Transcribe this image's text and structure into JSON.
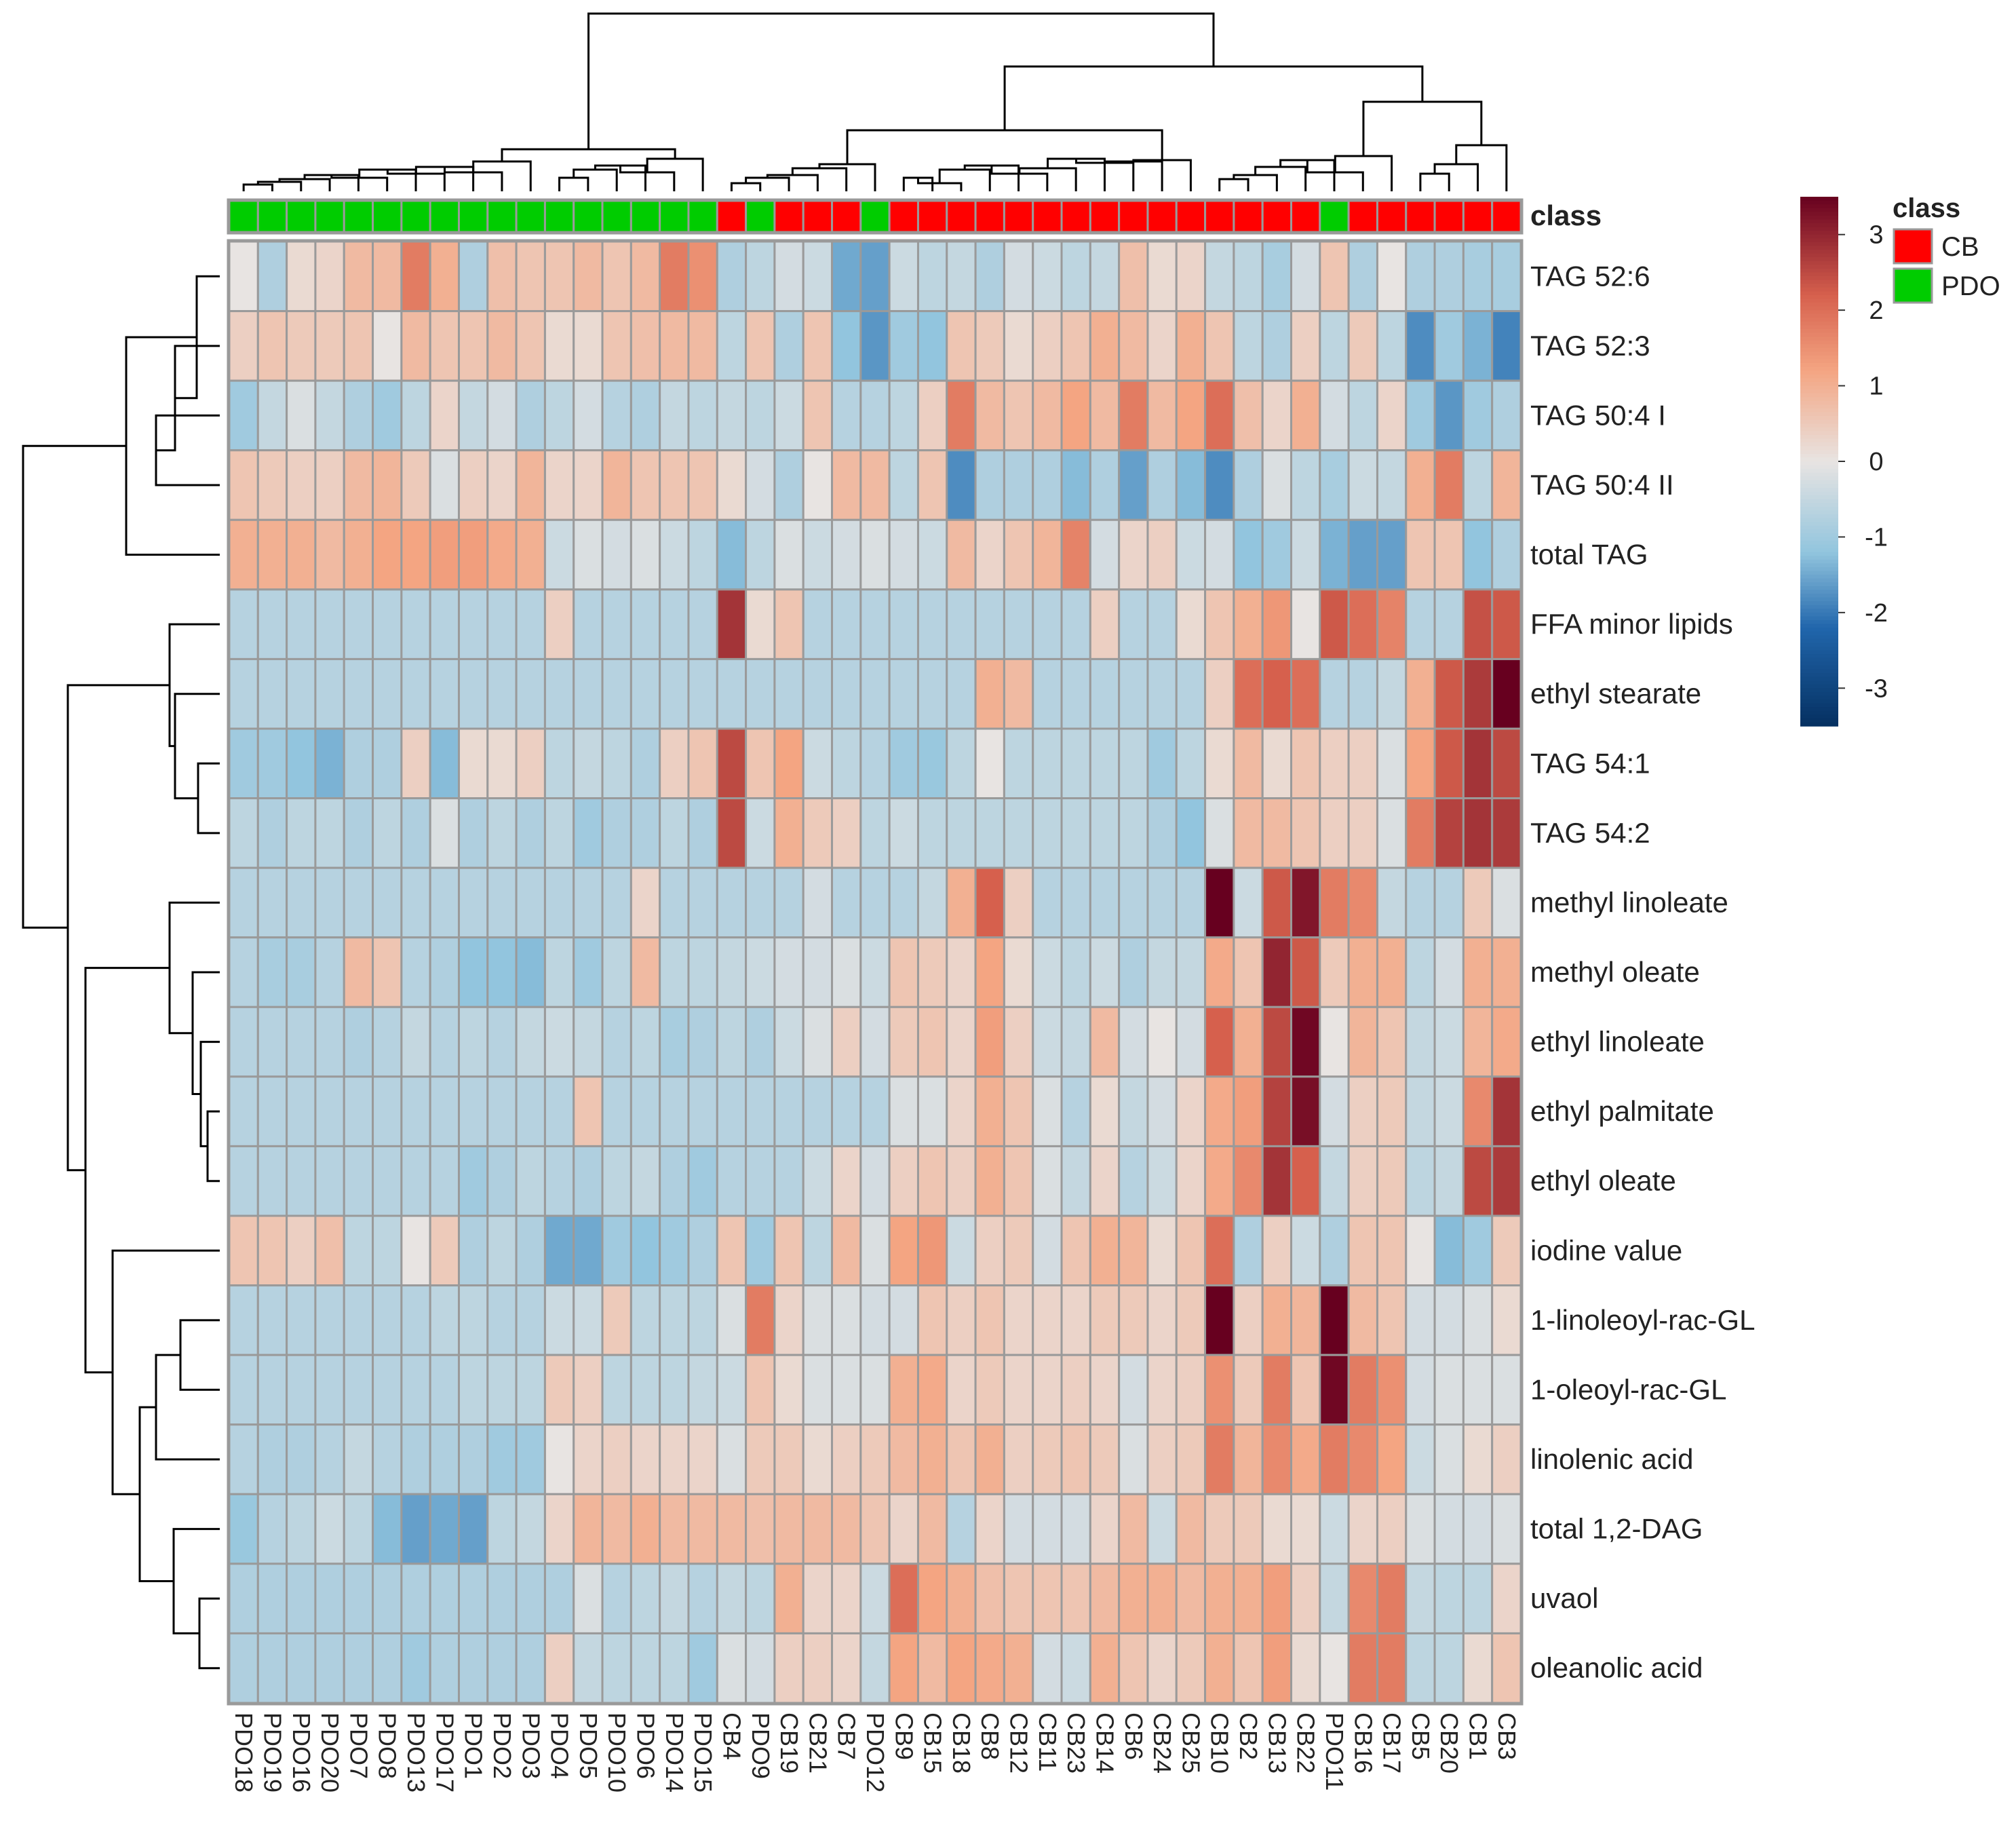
{
  "chart_data": {
    "type": "heatmap",
    "title": "",
    "class_header": "class",
    "legend_title": "class",
    "classes": [
      {
        "name": "CB",
        "color": "#ff0000"
      },
      {
        "name": "PDO",
        "color": "#00cc00"
      }
    ],
    "color_scale": {
      "min": -3.5,
      "max": 3.5,
      "ticks": [
        3,
        2,
        1,
        0,
        -1,
        -2,
        -3
      ],
      "tick_labels": [
        "3",
        "2",
        "1",
        "0",
        "-1",
        "-2",
        "-3"
      ],
      "stops": [
        {
          "v": -3.5,
          "color": "#053061"
        },
        {
          "v": -2.2,
          "color": "#2166ac"
        },
        {
          "v": -1.2,
          "color": "#92c5de"
        },
        {
          "v": 0,
          "color": "#e8e4e2"
        },
        {
          "v": 1.2,
          "color": "#f4a582"
        },
        {
          "v": 2.2,
          "color": "#d6604d"
        },
        {
          "v": 3.5,
          "color": "#67001f"
        }
      ]
    },
    "columns": [
      "PDO18",
      "PDO19",
      "PDO16",
      "PDO20",
      "PDO7",
      "PDO8",
      "PDO13",
      "PDO17",
      "PDO1",
      "PDO2",
      "PDO3",
      "PDO4",
      "PDO5",
      "PDO10",
      "PDO6",
      "PDO14",
      "PDO15",
      "CB4",
      "PDO9",
      "CB19",
      "CB21",
      "CB7",
      "PDO12",
      "CB9",
      "CB15",
      "CB18",
      "CB8",
      "CB12",
      "CB11",
      "CB23",
      "CB14",
      "CB6",
      "CB24",
      "CB25",
      "CB10",
      "CB2",
      "CB13",
      "CB22",
      "PDO11",
      "CB16",
      "CB17",
      "CB5",
      "CB20",
      "CB1",
      "CB3"
    ],
    "column_classes": [
      "PDO",
      "PDO",
      "PDO",
      "PDO",
      "PDO",
      "PDO",
      "PDO",
      "PDO",
      "PDO",
      "PDO",
      "PDO",
      "PDO",
      "PDO",
      "PDO",
      "PDO",
      "PDO",
      "PDO",
      "CB",
      "PDO",
      "CB",
      "CB",
      "CB",
      "PDO",
      "CB",
      "CB",
      "CB",
      "CB",
      "CB",
      "CB",
      "CB",
      "CB",
      "CB",
      "CB",
      "CB",
      "CB",
      "CB",
      "CB",
      "CB",
      "PDO",
      "CB",
      "CB",
      "CB",
      "CB",
      "CB",
      "CB"
    ],
    "rows": [
      "TAG 52:6",
      "TAG 52:3",
      "TAG 50:4 I",
      "TAG 50:4 II",
      "total TAG",
      "FFA  minor lipids",
      "ethyl stearate",
      "TAG 54:1",
      "TAG 54:2",
      "methyl linoleate",
      "methyl oleate",
      "ethyl linoleate",
      "ethyl palmitate",
      "ethyl oleate",
      "iodine value",
      "1-linoleoyl-rac-GL",
      "1-oleoyl-rac-GL",
      "linolenic acid",
      "total 1,2-DAG",
      "uvaol",
      "oleanolic acid"
    ],
    "values": [
      [
        0,
        -0.8,
        0.2,
        0.3,
        0.8,
        0.8,
        1.8,
        1,
        -0.8,
        0.7,
        0.6,
        0.6,
        0.8,
        0.6,
        0.8,
        1.8,
        1.5,
        -0.8,
        -0.6,
        -0.3,
        -0.4,
        -1.5,
        -1.6,
        -0.4,
        -0.6,
        -0.5,
        -0.8,
        -0.3,
        -0.4,
        -0.6,
        -0.5,
        0.7,
        0.2,
        0.3,
        -0.5,
        -0.6,
        -0.9,
        -0.3,
        0.6,
        -0.8,
        0,
        -0.8,
        -0.8,
        -0.9,
        -0.9
      ],
      [
        0.4,
        0.6,
        0.5,
        0.5,
        0.6,
        0,
        0.8,
        0.6,
        0.6,
        0.8,
        0.6,
        0.2,
        0.2,
        0.6,
        0.7,
        0.8,
        0.8,
        -0.6,
        0.6,
        -0.8,
        0.6,
        -1.2,
        -1.7,
        -1,
        -1.2,
        0.6,
        0.5,
        0.2,
        0.4,
        0.6,
        1,
        0.8,
        0.3,
        1,
        0.6,
        -0.6,
        -0.8,
        0.4,
        -0.6,
        0.5,
        -0.6,
        -1.8,
        -1,
        -1.4,
        -1.9
      ],
      [
        -1,
        -0.5,
        -0.2,
        -0.5,
        -0.8,
        -1,
        -0.6,
        0.3,
        -0.5,
        -0.3,
        -0.8,
        -0.6,
        -0.3,
        -0.7,
        -0.8,
        -0.5,
        -0.6,
        -0.5,
        -0.6,
        -0.4,
        0.6,
        -0.7,
        -0.7,
        -0.6,
        0.4,
        1.8,
        0.8,
        0.6,
        0.8,
        1.2,
        0.8,
        1.8,
        0.8,
        1.2,
        2,
        0.7,
        0.3,
        1,
        -0.3,
        -0.6,
        0.3,
        -1,
        -1.7,
        -1,
        -0.8
      ],
      [
        0.6,
        0.5,
        0.4,
        0.4,
        0.8,
        0.9,
        0.5,
        -0.2,
        0.4,
        0.3,
        0.9,
        0.3,
        0.3,
        0.9,
        0.6,
        0.6,
        0.6,
        0.2,
        -0.3,
        -0.8,
        0,
        0.8,
        0.8,
        -0.6,
        0.6,
        -1.8,
        -0.8,
        -0.8,
        -0.8,
        -1.3,
        -0.8,
        -1.6,
        -0.8,
        -1.3,
        -1.8,
        -0.8,
        -0.2,
        -0.6,
        -0.9,
        -0.4,
        -0.5,
        1,
        1.8,
        -0.6,
        0.9
      ],
      [
        1,
        1,
        1,
        0.8,
        1,
        1.2,
        1.2,
        1.3,
        1.3,
        1.1,
        1,
        -0.4,
        -0.2,
        -0.3,
        -0.2,
        -0.4,
        -0.6,
        -1.3,
        -0.6,
        -0.2,
        -0.4,
        -0.3,
        -0.2,
        -0.3,
        -0.4,
        0.8,
        0.3,
        0.6,
        0.9,
        1.7,
        -0.3,
        0.3,
        0.4,
        -0.4,
        -0.3,
        -1.2,
        -1,
        -0.4,
        -1.4,
        -1.6,
        -1.6,
        0.6,
        0.6,
        -1.2,
        -0.8
      ],
      [
        -0.7,
        -0.7,
        -0.7,
        -0.7,
        -0.7,
        -0.7,
        -0.7,
        -0.7,
        -0.7,
        -0.7,
        -0.7,
        0.4,
        -0.7,
        -0.7,
        -0.7,
        -0.7,
        -0.7,
        2.8,
        0.2,
        0.6,
        -0.7,
        -0.7,
        -0.7,
        -0.7,
        -0.7,
        -0.7,
        -0.7,
        -0.7,
        -0.7,
        -0.7,
        0.4,
        -0.7,
        -0.7,
        0.2,
        0.6,
        1,
        1.4,
        0,
        2.3,
        2,
        1.7,
        -0.7,
        -0.7,
        2.4,
        2.3
      ],
      [
        -0.7,
        -0.7,
        -0.7,
        -0.7,
        -0.7,
        -0.7,
        -0.7,
        -0.7,
        -0.7,
        -0.7,
        -0.7,
        -0.7,
        -0.7,
        -0.7,
        -0.7,
        -0.7,
        -0.7,
        -0.7,
        -0.7,
        -0.7,
        -0.7,
        -0.7,
        -0.7,
        -0.7,
        -0.7,
        -0.7,
        1,
        0.8,
        -0.7,
        -0.7,
        -0.7,
        -0.7,
        -0.7,
        -0.7,
        0.4,
        2,
        2.2,
        2,
        -0.7,
        -0.7,
        -0.5,
        1,
        2.3,
        2.7,
        3.5
      ],
      [
        -1,
        -1,
        -1.2,
        -1.4,
        -0.8,
        -0.8,
        0.4,
        -1.3,
        0.2,
        0.2,
        0.4,
        -0.6,
        -0.5,
        -0.6,
        -0.8,
        0.4,
        0.6,
        2.5,
        0.6,
        1.2,
        -0.4,
        -0.6,
        -0.7,
        -1,
        -1.1,
        -0.6,
        0,
        -0.6,
        -0.6,
        -0.6,
        -0.6,
        -0.6,
        -1,
        -0.6,
        0.2,
        0.8,
        0.2,
        0.6,
        0.4,
        0.4,
        -0.2,
        1.2,
        2.3,
        2.8,
        2.5
      ],
      [
        -0.6,
        -0.8,
        -0.6,
        -0.6,
        -0.8,
        -0.6,
        -0.8,
        -0.2,
        -0.8,
        -0.6,
        -0.8,
        -0.6,
        -1,
        -0.8,
        -0.8,
        -0.6,
        -0.8,
        2.5,
        -0.4,
        1,
        0.5,
        0.4,
        -0.6,
        -0.4,
        -0.6,
        -0.6,
        -0.6,
        -0.6,
        -0.6,
        -0.6,
        -0.6,
        -0.6,
        -0.8,
        -1.2,
        -0.2,
        0.8,
        0.8,
        0.6,
        0.4,
        0.4,
        -0.2,
        1.8,
        2.6,
        2.8,
        2.7
      ],
      [
        -0.7,
        -0.7,
        -0.7,
        -0.7,
        -0.7,
        -0.7,
        -0.7,
        -0.7,
        -0.7,
        -0.7,
        -0.7,
        -0.7,
        -0.7,
        -0.7,
        0.3,
        -0.7,
        -0.7,
        -0.7,
        -0.7,
        -0.7,
        -0.3,
        -0.7,
        -0.7,
        -0.7,
        -0.5,
        1,
        2.2,
        0.4,
        -0.7,
        -0.7,
        -0.7,
        -0.7,
        -0.7,
        -0.7,
        3.6,
        -0.4,
        2.3,
        3.2,
        1.8,
        1.6,
        -0.5,
        -0.7,
        -0.7,
        0.5,
        -0.2
      ],
      [
        -0.7,
        -0.9,
        -0.9,
        -0.7,
        0.8,
        0.6,
        -0.7,
        -0.8,
        -1.2,
        -1.2,
        -1.3,
        -0.6,
        -1,
        -0.6,
        0.8,
        -0.6,
        -0.6,
        -0.5,
        -0.4,
        -0.3,
        -0.3,
        -0.2,
        -0.4,
        0.6,
        0.5,
        0.3,
        1.2,
        0.2,
        -0.4,
        -0.6,
        -0.4,
        -0.8,
        -0.5,
        -0.5,
        1.1,
        0.6,
        3,
        2.3,
        0.5,
        1,
        1,
        -0.6,
        -0.3,
        1,
        1
      ],
      [
        -0.7,
        -0.7,
        -0.7,
        -0.7,
        -0.8,
        -0.7,
        -0.5,
        -0.7,
        -0.6,
        -0.7,
        -0.5,
        -0.4,
        -0.5,
        -0.7,
        -0.6,
        -0.9,
        -0.8,
        -0.6,
        -0.8,
        -0.4,
        -0.2,
        0.4,
        -0.3,
        0.5,
        0.6,
        0.3,
        1.3,
        0.4,
        -0.4,
        -0.5,
        0.8,
        -0.3,
        0,
        -0.3,
        2.2,
        1,
        2.5,
        3.4,
        0,
        0.9,
        0.6,
        -0.5,
        -0.4,
        0.9,
        1.1
      ],
      [
        -0.7,
        -0.7,
        -0.7,
        -0.7,
        -0.7,
        -0.7,
        -0.7,
        -0.7,
        -0.7,
        -0.7,
        -0.7,
        -0.7,
        0.6,
        -0.7,
        -0.7,
        -0.7,
        -0.7,
        -0.7,
        -0.7,
        -0.7,
        -0.7,
        -0.7,
        -0.7,
        -0.2,
        -0.2,
        0.3,
        1,
        0.6,
        -0.2,
        -0.7,
        0.2,
        -0.5,
        -0.3,
        0.3,
        1.1,
        1.3,
        2.6,
        3.3,
        -0.3,
        0.4,
        0.5,
        -0.5,
        -0.4,
        1.6,
        2.8
      ],
      [
        -0.7,
        -0.7,
        -0.7,
        -0.7,
        -0.7,
        -0.7,
        -0.7,
        -0.7,
        -1,
        -0.8,
        -0.6,
        -0.7,
        -0.8,
        -0.6,
        -0.5,
        -0.8,
        -1,
        -0.7,
        -0.7,
        -0.7,
        -0.4,
        0.3,
        -0.3,
        0.4,
        0.6,
        0.4,
        1,
        0.6,
        -0.2,
        -0.5,
        0.3,
        -0.7,
        -0.4,
        0.3,
        1.1,
        1.6,
        2.8,
        2.2,
        -0.5,
        0.4,
        0.5,
        -0.6,
        -0.5,
        2.5,
        2.7
      ],
      [
        0.6,
        0.6,
        0.4,
        0.7,
        -0.6,
        -0.6,
        0,
        0.5,
        -0.8,
        -0.6,
        -0.8,
        -1.5,
        -1.5,
        -1,
        -1.2,
        -1,
        -0.8,
        0.6,
        -1,
        0.6,
        -0.6,
        0.8,
        -0.2,
        1.2,
        1.4,
        -0.4,
        0.4,
        0.5,
        -0.3,
        0.6,
        1,
        0.9,
        0.2,
        0.6,
        2,
        -0.8,
        0.4,
        -0.4,
        -0.8,
        0.6,
        0.6,
        0,
        -1.3,
        -1,
        0.5
      ],
      [
        -0.7,
        -0.7,
        -0.7,
        -0.7,
        -0.7,
        -0.7,
        -0.7,
        -0.6,
        -0.6,
        -0.7,
        -0.7,
        -0.4,
        -0.4,
        0.5,
        -0.6,
        -0.6,
        -0.6,
        -0.2,
        1.8,
        0.3,
        -0.2,
        -0.2,
        -0.3,
        -0.3,
        0.6,
        0.4,
        0.6,
        0.3,
        0.3,
        0.3,
        0.5,
        0.5,
        0.3,
        0.5,
        3.5,
        0.4,
        1,
        0.9,
        3.6,
        0.8,
        0.6,
        -0.3,
        -0.3,
        -0.2,
        0.2
      ],
      [
        -0.7,
        -0.7,
        -0.7,
        -0.7,
        -0.7,
        -0.7,
        -0.7,
        -0.7,
        -0.6,
        -0.6,
        -0.6,
        0.5,
        0.4,
        -0.6,
        -0.6,
        -0.6,
        -0.5,
        -0.4,
        0.6,
        0.2,
        -0.2,
        -0.2,
        -0.2,
        1,
        1.1,
        0.3,
        0.5,
        0.3,
        0.3,
        0.4,
        0.3,
        -0.3,
        0.3,
        0.4,
        1.5,
        0.5,
        1.8,
        0.6,
        3.4,
        1.8,
        1.5,
        -0.3,
        -0.2,
        -0.2,
        -0.2
      ],
      [
        -0.7,
        -0.8,
        -0.8,
        -0.7,
        -0.5,
        -0.7,
        -0.8,
        -0.8,
        -0.8,
        -1,
        -1,
        0,
        0.3,
        0.4,
        0.3,
        0.3,
        0.3,
        -0.2,
        0.5,
        0.5,
        0.2,
        0.4,
        0.5,
        0.8,
        1,
        0.6,
        1,
        0.4,
        0.5,
        0.6,
        0.5,
        -0.2,
        0.4,
        0.5,
        1.8,
        0.9,
        1.6,
        1.1,
        1.8,
        1.6,
        1.2,
        -0.4,
        -0.2,
        0.2,
        0.4
      ],
      [
        -1.1,
        -0.7,
        -0.6,
        -0.4,
        -0.6,
        -1.3,
        -1.6,
        -1.5,
        -1.6,
        -0.6,
        -0.5,
        0.3,
        0.9,
        0.8,
        1,
        0.8,
        0.8,
        0.8,
        0.7,
        0.8,
        0.8,
        0.8,
        0.6,
        0.3,
        0.8,
        -0.7,
        0.3,
        -0.3,
        -0.3,
        -0.3,
        0.3,
        0.8,
        -0.4,
        0.8,
        0.5,
        0.5,
        0.2,
        0.2,
        -0.4,
        0.3,
        0.4,
        -0.2,
        -0.3,
        -0.3,
        -0.2
      ],
      [
        -0.8,
        -0.8,
        -0.8,
        -0.8,
        -0.8,
        -0.8,
        -0.8,
        -0.8,
        -0.8,
        -0.8,
        -0.8,
        -0.8,
        -0.2,
        -0.7,
        -0.6,
        -0.5,
        -0.7,
        -0.5,
        -0.6,
        1,
        0.3,
        0.3,
        -0.4,
        2,
        1.2,
        1,
        0.7,
        0.6,
        0.6,
        0.6,
        0.8,
        1,
        1,
        0.8,
        1,
        1,
        1.3,
        0.4,
        -0.5,
        1.6,
        1.8,
        -0.5,
        -0.6,
        -0.6,
        0.3
      ],
      [
        -0.8,
        -0.8,
        -0.8,
        -0.8,
        -0.8,
        -0.8,
        -1,
        -0.8,
        -0.8,
        -0.8,
        -0.8,
        0.4,
        -0.5,
        -0.6,
        -0.6,
        -0.6,
        -1,
        -0.2,
        -0.3,
        0.4,
        0.4,
        0.3,
        -0.5,
        1.2,
        0.8,
        1.2,
        1.1,
        1,
        -0.3,
        -0.4,
        1,
        0.6,
        0.3,
        0.5,
        1,
        0.6,
        1.3,
        0.2,
        0,
        1.8,
        1.8,
        -0.6,
        -0.6,
        0.2,
        0.6
      ]
    ]
  }
}
